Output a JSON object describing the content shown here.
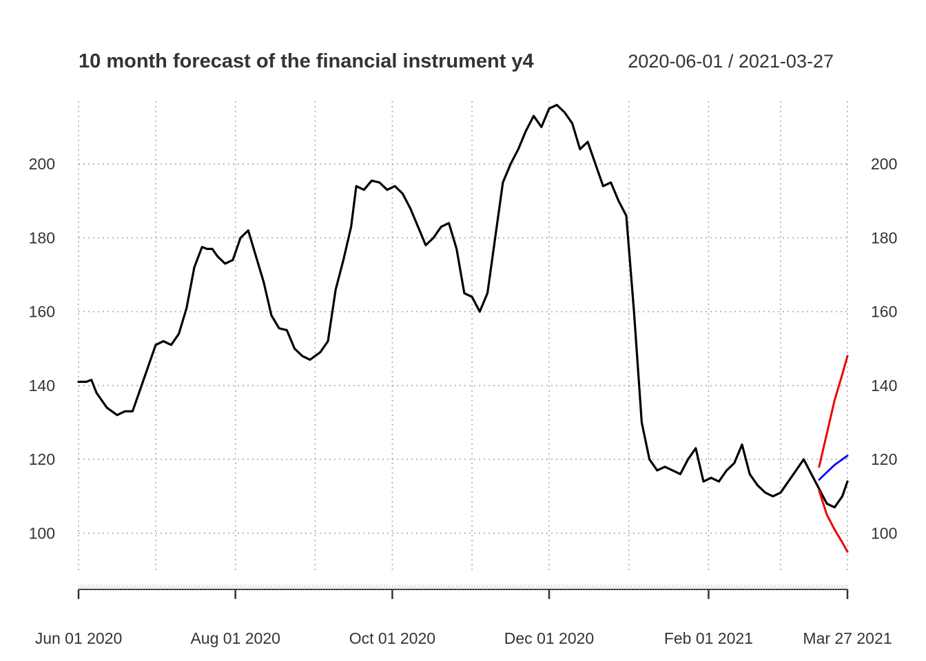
{
  "chart_data": {
    "type": "line",
    "title": "10 month forecast of the financial instrument y4",
    "date_range_label": "2020-06-01 / 2021-03-27",
    "xlabel": "",
    "ylabel": "",
    "x_range": [
      "2020-06-01",
      "2021-03-27"
    ],
    "ylim": [
      90,
      217
    ],
    "y_ticks": [
      100,
      120,
      140,
      160,
      180,
      200
    ],
    "x_tick_labels": [
      {
        "date": "2020-06-01",
        "label": "Jun 01 2020"
      },
      {
        "date": "2020-08-01",
        "label": "Aug 01 2020"
      },
      {
        "date": "2020-10-01",
        "label": "Oct 01 2020"
      },
      {
        "date": "2020-12-01",
        "label": "Dec 01 2020"
      },
      {
        "date": "2021-02-01",
        "label": "Feb 01 2021"
      },
      {
        "date": "2021-03-27",
        "label": "Mar 27 2021"
      }
    ],
    "x_grid_dates": [
      "2020-06-01",
      "2020-07-01",
      "2020-08-01",
      "2020-09-01",
      "2020-10-01",
      "2020-11-01",
      "2020-12-01",
      "2021-01-01",
      "2021-02-01",
      "2021-03-01",
      "2021-03-27"
    ],
    "grid": true,
    "colors": {
      "actual": "#000000",
      "forecast": "#0000ee",
      "upper": "#ee0000",
      "lower": "#ee0000"
    },
    "series": [
      {
        "key": "actual",
        "x": [
          "2020-06-01",
          "2020-06-04",
          "2020-06-06",
          "2020-06-08",
          "2020-06-12",
          "2020-06-16",
          "2020-06-19",
          "2020-06-22",
          "2020-06-25",
          "2020-06-28",
          "2020-07-01",
          "2020-07-04",
          "2020-07-07",
          "2020-07-10",
          "2020-07-13",
          "2020-07-16",
          "2020-07-19",
          "2020-07-21",
          "2020-07-23",
          "2020-07-25",
          "2020-07-28",
          "2020-07-31",
          "2020-08-03",
          "2020-08-06",
          "2020-08-09",
          "2020-08-12",
          "2020-08-15",
          "2020-08-18",
          "2020-08-21",
          "2020-08-24",
          "2020-08-27",
          "2020-08-30",
          "2020-09-03",
          "2020-09-06",
          "2020-09-09",
          "2020-09-12",
          "2020-09-15",
          "2020-09-17",
          "2020-09-20",
          "2020-09-23",
          "2020-09-26",
          "2020-09-29",
          "2020-10-02",
          "2020-10-05",
          "2020-10-08",
          "2020-10-11",
          "2020-10-14",
          "2020-10-17",
          "2020-10-20",
          "2020-10-23",
          "2020-10-26",
          "2020-10-29",
          "2020-11-01",
          "2020-11-04",
          "2020-11-07",
          "2020-11-10",
          "2020-11-13",
          "2020-11-16",
          "2020-11-19",
          "2020-11-22",
          "2020-11-25",
          "2020-11-28",
          "2020-12-01",
          "2020-12-04",
          "2020-12-07",
          "2020-12-10",
          "2020-12-13",
          "2020-12-16",
          "2020-12-19",
          "2020-12-22",
          "2020-12-25",
          "2020-12-28",
          "2020-12-31",
          "2021-01-03",
          "2021-01-06",
          "2021-01-09",
          "2021-01-12",
          "2021-01-15",
          "2021-01-18",
          "2021-01-21",
          "2021-01-24",
          "2021-01-27",
          "2021-01-30",
          "2021-02-02",
          "2021-02-05",
          "2021-02-08",
          "2021-02-11",
          "2021-02-14",
          "2021-02-17",
          "2021-02-20",
          "2021-02-23",
          "2021-02-26",
          "2021-03-01",
          "2021-03-04",
          "2021-03-07",
          "2021-03-10",
          "2021-03-13",
          "2021-03-16",
          "2021-03-19",
          "2021-03-22",
          "2021-03-25",
          "2021-03-27"
        ],
        "y": [
          141,
          141,
          141.5,
          138,
          134,
          132,
          133,
          133,
          139,
          145,
          151,
          152,
          151,
          154,
          161,
          172,
          177.5,
          177,
          177,
          175,
          173,
          174,
          180,
          182,
          175,
          168,
          159,
          155.5,
          155,
          150,
          148,
          147,
          149,
          152,
          166,
          174,
          183,
          194,
          193,
          195.5,
          195,
          193,
          194,
          192,
          188,
          183,
          178,
          180,
          183,
          184,
          177,
          165,
          164,
          160,
          165,
          180,
          195,
          200,
          204,
          209,
          213,
          210,
          215,
          216,
          214,
          211,
          204,
          206,
          200,
          194,
          195,
          190,
          186,
          160,
          130,
          120,
          117,
          118,
          117,
          116,
          120,
          123,
          114,
          115,
          114,
          117,
          119,
          124,
          116,
          113,
          111,
          110,
          111,
          114,
          117,
          120,
          116,
          112,
          108,
          107,
          110,
          114
        ]
      },
      {
        "key": "forecast",
        "x": [
          "2021-03-16",
          "2021-03-19",
          "2021-03-22",
          "2021-03-25",
          "2021-03-27"
        ],
        "y": [
          114.5,
          116.5,
          118.5,
          120,
          121
        ]
      },
      {
        "key": "upper",
        "x": [
          "2021-03-16",
          "2021-03-19",
          "2021-03-22",
          "2021-03-25",
          "2021-03-27"
        ],
        "y": [
          118,
          127,
          136,
          143,
          148
        ]
      },
      {
        "key": "lower",
        "x": [
          "2021-03-16",
          "2021-03-19",
          "2021-03-22",
          "2021-03-25",
          "2021-03-27"
        ],
        "y": [
          111.5,
          105,
          101,
          97.5,
          95
        ]
      }
    ]
  }
}
